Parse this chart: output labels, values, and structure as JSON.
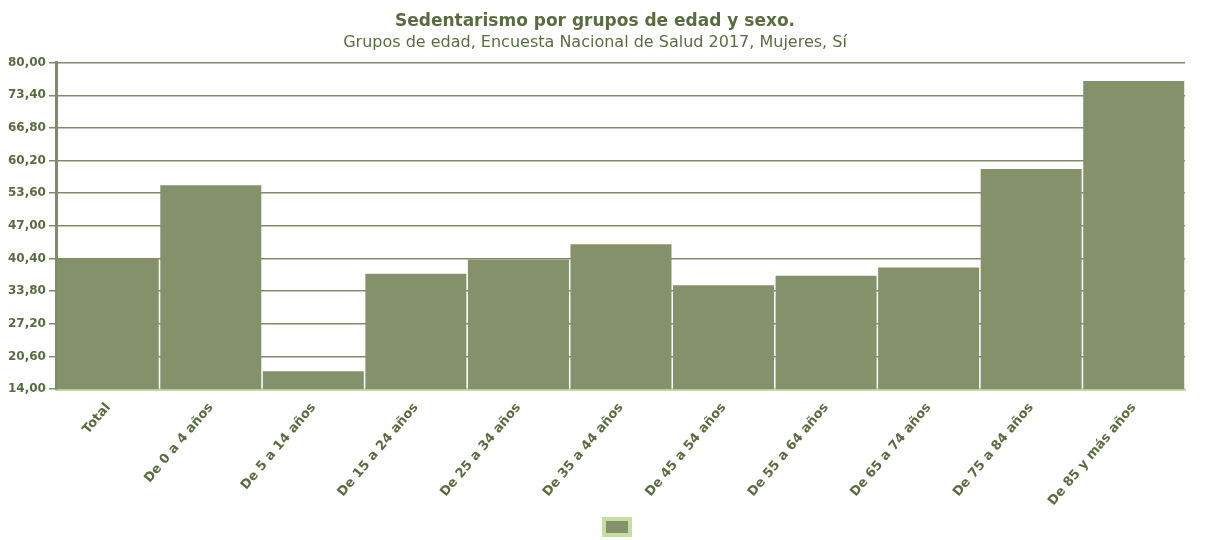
{
  "chart_data": {
    "type": "bar",
    "title": "Sedentarismo por grupos de edad y sexo.",
    "subtitle": "Grupos de edad, Encuesta Nacional de Salud 2017, Mujeres, Sí",
    "categories": [
      "Total",
      "De 0 a 4 años",
      "De 5 a 14 años",
      "De 15 a 24 años",
      "De 25 a 34 años",
      "De 35 a 44 años",
      "De 45 a 54 años",
      "De 55 a 64 años",
      "De 65 a 74 años",
      "De 75 a 84 años",
      "De 85 y más años"
    ],
    "series": [
      {
        "color": "#84916a",
        "values": [
          40.3,
          55.2,
          17.6,
          37.3,
          40.2,
          43.3,
          35.0,
          36.9,
          38.6,
          58.5,
          76.3
        ]
      }
    ],
    "ylim": [
      14,
      80
    ],
    "yticks": [
      {
        "value": 14,
        "label": "14,00"
      },
      {
        "value": 20.6,
        "label": "20,60"
      },
      {
        "value": 27.2,
        "label": "27,20"
      },
      {
        "value": 33.8,
        "label": "33,80"
      },
      {
        "value": 40.4,
        "label": "40,40"
      },
      {
        "value": 47,
        "label": "47,00"
      },
      {
        "value": 53.6,
        "label": "53,60"
      },
      {
        "value": 60.2,
        "label": "60,20"
      },
      {
        "value": 66.8,
        "label": "66,80"
      },
      {
        "value": 73.4,
        "label": "73,40"
      },
      {
        "value": 80,
        "label": "80,00"
      }
    ],
    "grid": "y"
  }
}
